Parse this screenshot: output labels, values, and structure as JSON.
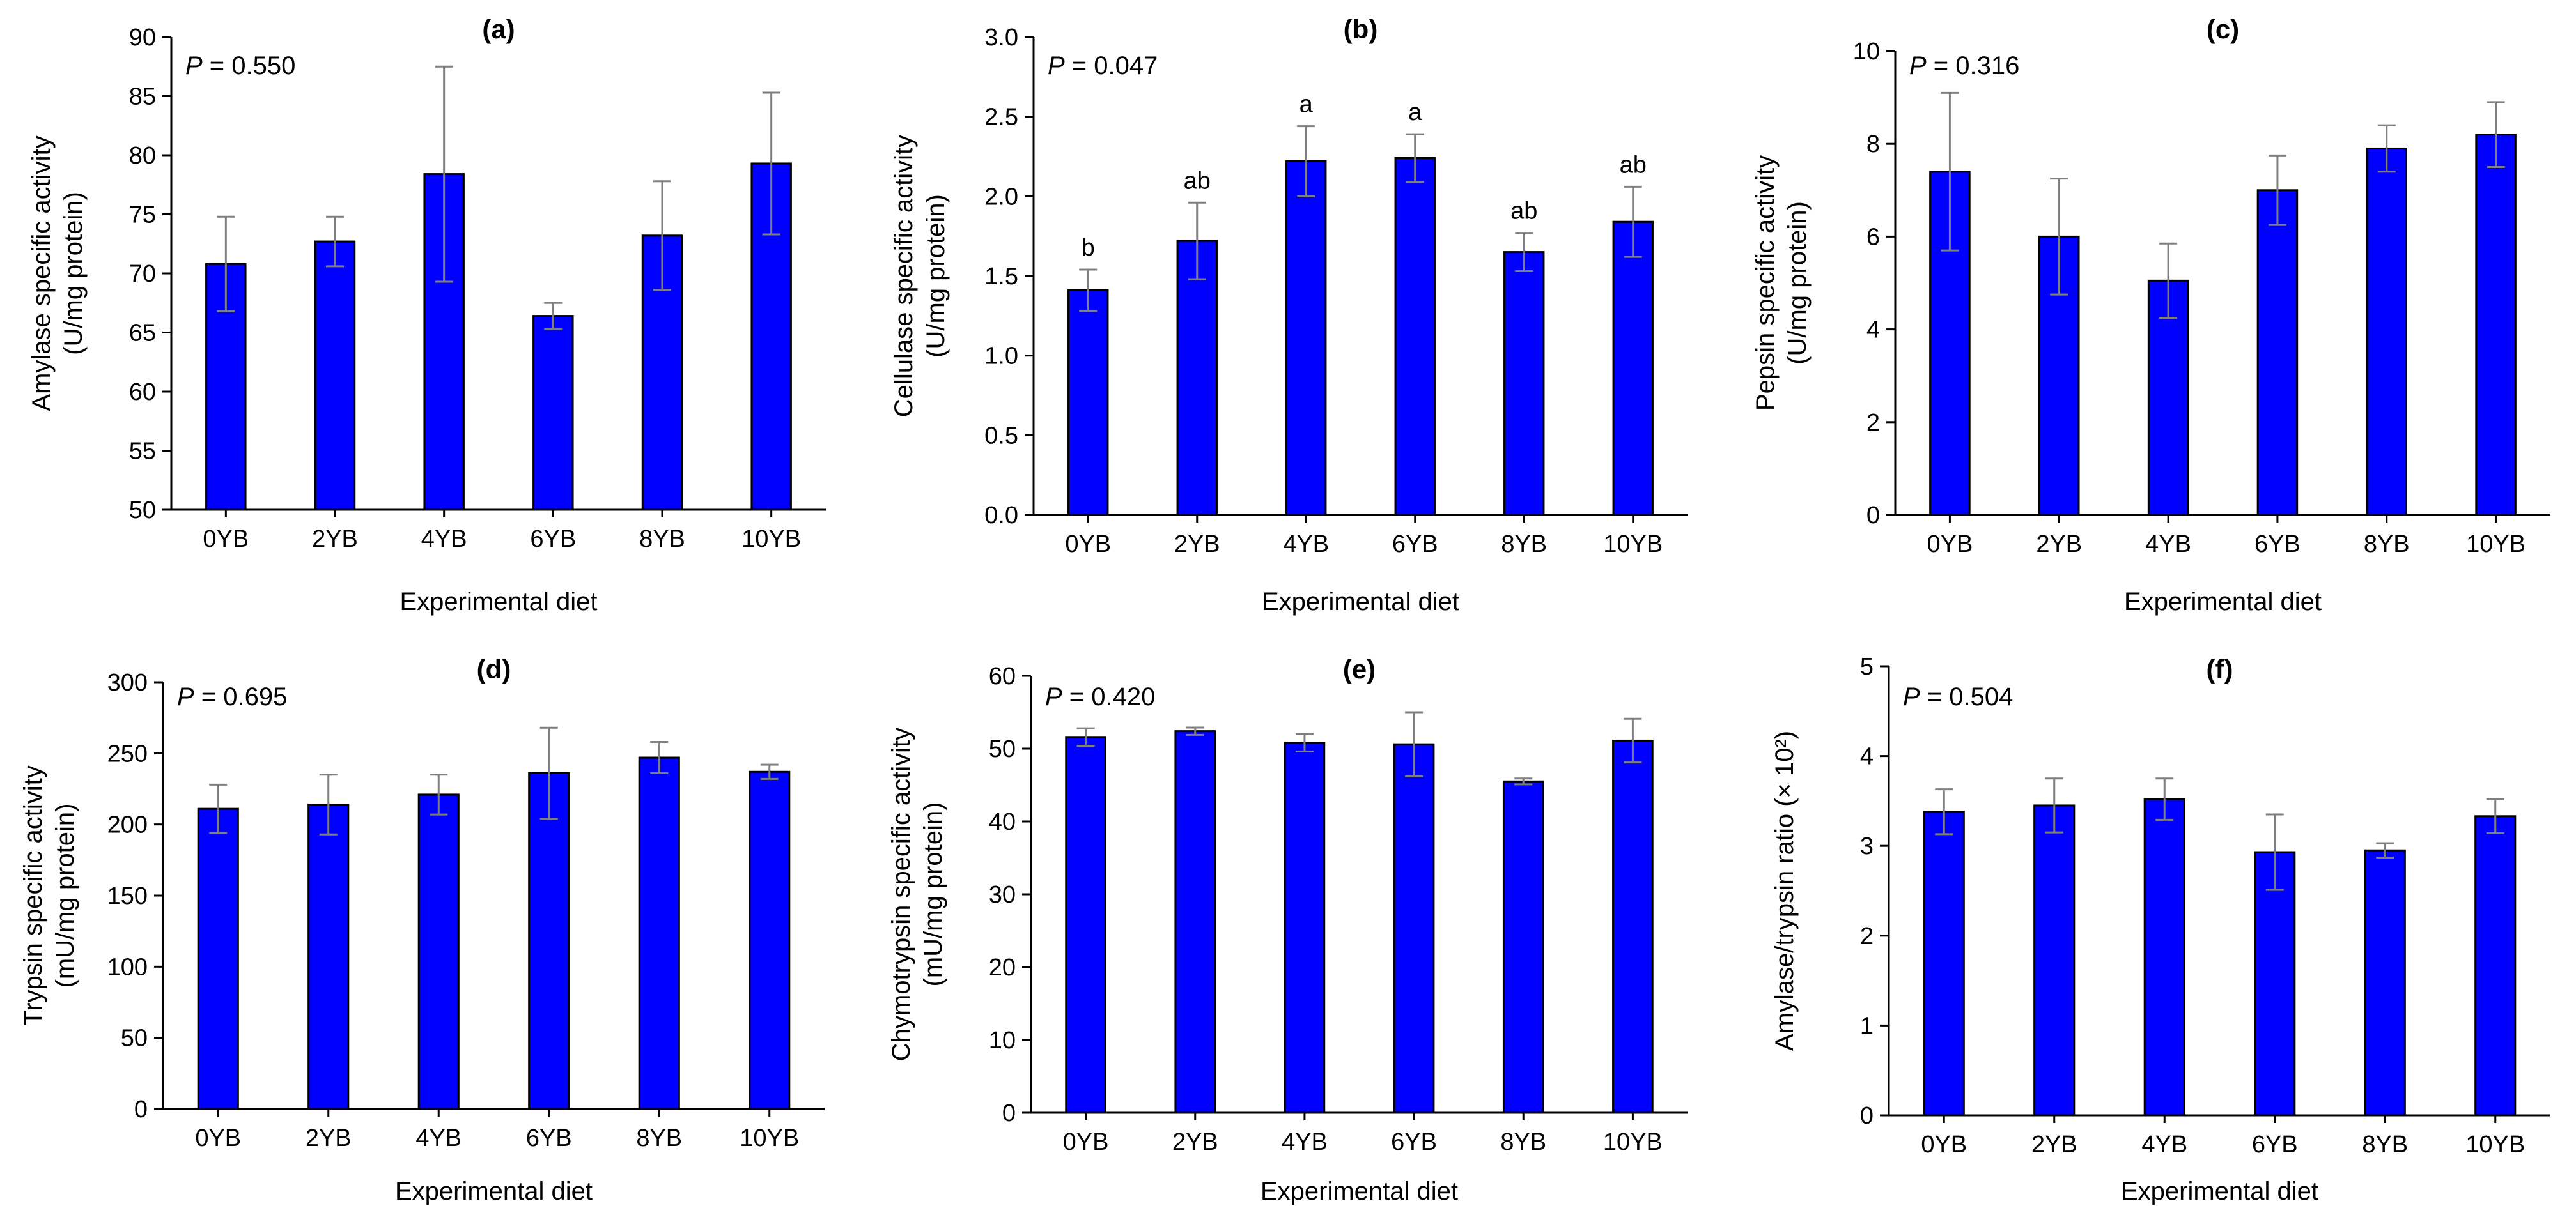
{
  "colors": {
    "bar": "#0000ff",
    "bar_edge": "#000000",
    "error_bar": "#7f7f7f",
    "axis": "#000000"
  },
  "chart_data": [
    {
      "type": "bar",
      "panel": "(a)",
      "p_label": "P",
      "p_value": " = 0.550",
      "ylabel_lines": [
        "Amylase specific activity",
        "(U/mg protein)"
      ],
      "xlabel": "Experimental diet",
      "categories": [
        "0YB",
        "2YB",
        "4YB",
        "6YB",
        "8YB",
        "10YB"
      ],
      "values": [
        70.8,
        72.7,
        78.4,
        66.4,
        73.2,
        79.3
      ],
      "errors": [
        4.0,
        2.1,
        9.1,
        1.1,
        4.6,
        6.0
      ],
      "letters": [],
      "ylim": [
        50,
        90
      ],
      "yticks": [
        50,
        55,
        60,
        65,
        70,
        75,
        80,
        85,
        90
      ],
      "ytick_decimals": 0
    },
    {
      "type": "bar",
      "panel": "(b)",
      "p_label": "P",
      "p_value": " = 0.047",
      "ylabel_lines": [
        "Cellulase specific activity",
        "(U/mg protein)"
      ],
      "xlabel": "Experimental diet",
      "categories": [
        "0YB",
        "2YB",
        "4YB",
        "6YB",
        "8YB",
        "10YB"
      ],
      "values": [
        1.41,
        1.72,
        2.22,
        2.24,
        1.65,
        1.84
      ],
      "errors": [
        0.13,
        0.24,
        0.22,
        0.15,
        0.12,
        0.22
      ],
      "letters": [
        "b",
        "ab",
        "a",
        "a",
        "ab",
        "ab"
      ],
      "ylim": [
        0,
        3
      ],
      "yticks": [
        0,
        0.5,
        1,
        1.5,
        2,
        2.5,
        3
      ],
      "ytick_decimals": 1
    },
    {
      "type": "bar",
      "panel": "(c)",
      "p_label": "P",
      "p_value": " = 0.316",
      "ylabel_lines": [
        "Pepsin specific activity",
        "(U/mg protein)"
      ],
      "xlabel": "Experimental diet",
      "categories": [
        "0YB",
        "2YB",
        "4YB",
        "6YB",
        "8YB",
        "10YB"
      ],
      "values": [
        7.4,
        6.0,
        5.05,
        7.0,
        7.9,
        8.2
      ],
      "errors": [
        1.7,
        1.25,
        0.8,
        0.75,
        0.5,
        0.7
      ],
      "letters": [],
      "ylim": [
        0,
        10
      ],
      "yticks": [
        0,
        2,
        4,
        6,
        8,
        10
      ],
      "ytick_decimals": 0
    },
    {
      "type": "bar",
      "panel": "(d)",
      "p_label": "P",
      "p_value": " = 0.695",
      "ylabel_lines": [
        "Trypsin specific activity",
        "(mU/mg protein)"
      ],
      "xlabel": "Experimental diet",
      "categories": [
        "0YB",
        "2YB",
        "4YB",
        "6YB",
        "8YB",
        "10YB"
      ],
      "values": [
        211,
        214,
        221,
        236,
        247,
        237
      ],
      "errors": [
        17,
        21,
        14,
        32,
        11,
        5
      ],
      "letters": [],
      "ylim": [
        0,
        300
      ],
      "yticks": [
        0,
        50,
        100,
        150,
        200,
        250,
        300
      ],
      "ytick_decimals": 0
    },
    {
      "type": "bar",
      "panel": "(e)",
      "p_label": "P",
      "p_value": " = 0.420",
      "ylabel_lines": [
        "Chymotrypsin specific activity",
        "(mU/mg protein)"
      ],
      "xlabel": "Experimental diet",
      "categories": [
        "0YB",
        "2YB",
        "4YB",
        "6YB",
        "8YB",
        "10YB"
      ],
      "values": [
        51.6,
        52.4,
        50.8,
        50.6,
        45.5,
        51.1
      ],
      "errors": [
        1.2,
        0.5,
        1.2,
        4.4,
        0.4,
        3.0
      ],
      "letters": [],
      "ylim": [
        0,
        60
      ],
      "yticks": [
        0,
        10,
        20,
        30,
        40,
        50,
        60
      ],
      "ytick_decimals": 0
    },
    {
      "type": "bar",
      "panel": "(f)",
      "p_label": "P",
      "p_value": " = 0.504",
      "ylabel_lines": [
        "Amylase/trypsin ratio (× 10²)"
      ],
      "xlabel": "Experimental diet",
      "categories": [
        "0YB",
        "2YB",
        "4YB",
        "6YB",
        "8YB",
        "10YB"
      ],
      "values": [
        3.38,
        3.45,
        3.52,
        2.93,
        2.95,
        3.33
      ],
      "errors": [
        0.25,
        0.3,
        0.23,
        0.42,
        0.08,
        0.19
      ],
      "letters": [],
      "ylim": [
        0,
        5
      ],
      "yticks": [
        0,
        1,
        2,
        3,
        4,
        5
      ],
      "ytick_decimals": 0
    }
  ]
}
